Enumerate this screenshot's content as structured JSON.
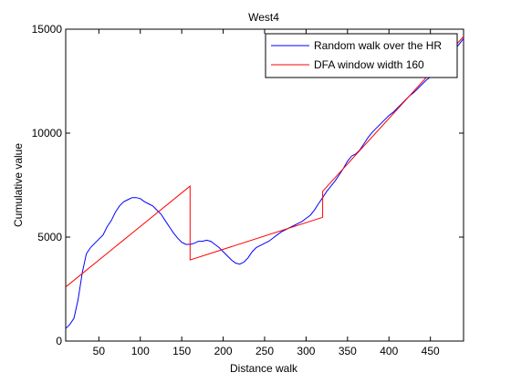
{
  "chart_data": {
    "type": "line",
    "title": "West4",
    "xlabel": "Distance walk",
    "ylabel": "Cumulative value",
    "xlim": [
      10,
      490
    ],
    "ylim": [
      0,
      15000
    ],
    "xticks": [
      50,
      100,
      150,
      200,
      250,
      300,
      350,
      400,
      450
    ],
    "yticks": [
      0,
      5000,
      10000,
      15000
    ],
    "grid": false,
    "legend_position": "top-right",
    "series": [
      {
        "name": "Random walk over the HR",
        "color": "#0000ff",
        "x": [
          10,
          15,
          20,
          25,
          30,
          35,
          40,
          45,
          50,
          55,
          60,
          65,
          70,
          75,
          80,
          85,
          90,
          95,
          100,
          105,
          110,
          115,
          120,
          125,
          130,
          135,
          140,
          145,
          150,
          155,
          160,
          165,
          170,
          175,
          180,
          185,
          190,
          195,
          200,
          205,
          210,
          215,
          220,
          225,
          230,
          235,
          240,
          245,
          250,
          255,
          260,
          265,
          270,
          275,
          280,
          285,
          290,
          295,
          300,
          305,
          310,
          315,
          320,
          325,
          330,
          335,
          340,
          345,
          350,
          355,
          360,
          365,
          370,
          375,
          380,
          385,
          390,
          395,
          400,
          405,
          410,
          415,
          420,
          425,
          430,
          435,
          440,
          445,
          450,
          455,
          460,
          465,
          470,
          475,
          480,
          485,
          490
        ],
        "y": [
          600,
          800,
          1100,
          2000,
          3300,
          4200,
          4500,
          4700,
          4900,
          5100,
          5500,
          5800,
          6200,
          6500,
          6700,
          6800,
          6900,
          6900,
          6850,
          6700,
          6600,
          6500,
          6300,
          6100,
          5800,
          5500,
          5200,
          4950,
          4750,
          4650,
          4650,
          4700,
          4800,
          4800,
          4850,
          4800,
          4650,
          4500,
          4300,
          4100,
          3900,
          3750,
          3700,
          3800,
          4000,
          4300,
          4500,
          4600,
          4700,
          4800,
          4950,
          5100,
          5250,
          5350,
          5450,
          5550,
          5650,
          5750,
          5900,
          6050,
          6300,
          6600,
          6900,
          7200,
          7450,
          7700,
          8000,
          8300,
          8650,
          8900,
          9000,
          9200,
          9500,
          9800,
          10050,
          10250,
          10450,
          10650,
          10850,
          11000,
          11200,
          11400,
          11600,
          11800,
          11950,
          12150,
          12350,
          12550,
          12700,
          12900,
          13100,
          13350,
          13550,
          13800,
          14050,
          14300,
          14550
        ]
      },
      {
        "name": "DFA window width 160",
        "color": "#ff0000",
        "x": [
          10,
          160,
          160,
          320,
          320,
          490
        ],
        "y": [
          2600,
          7450,
          3900,
          5950,
          7200,
          14650
        ]
      }
    ]
  }
}
